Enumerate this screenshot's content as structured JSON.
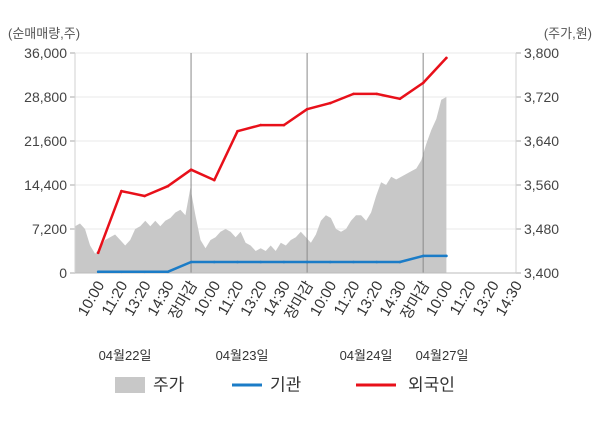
{
  "chart_data": {
    "type": "line",
    "ylabel_left": "(순매매량,주)",
    "ylabel_right": "(주가,원)",
    "ylim_left": [
      0,
      36000
    ],
    "ylim_right": [
      3400,
      3800
    ],
    "yticks_left": [
      {
        "value": 0,
        "label": "0"
      },
      {
        "value": 7200,
        "label": "7,200"
      },
      {
        "value": 14400,
        "label": "14,400"
      },
      {
        "value": 21600,
        "label": "21,600"
      },
      {
        "value": 28800,
        "label": "28,800"
      },
      {
        "value": 36000,
        "label": "36,000"
      }
    ],
    "yticks_right": [
      {
        "value": 3400,
        "label": "3,400"
      },
      {
        "value": 3480,
        "label": "3,480"
      },
      {
        "value": 3560,
        "label": "3,560"
      },
      {
        "value": 3640,
        "label": "3,640"
      },
      {
        "value": 3720,
        "label": "3,720"
      },
      {
        "value": 3800,
        "label": "3,800"
      }
    ],
    "days": [
      {
        "date": "04월22일",
        "times": [
          {
            "label": "10:00"
          },
          {
            "label": "11:20"
          },
          {
            "label": "13:20"
          },
          {
            "label": "14:30"
          },
          {
            "label": "장마감",
            "color": "#e60012"
          }
        ]
      },
      {
        "date": "04월23일",
        "times": [
          {
            "label": "10:00"
          },
          {
            "label": "11:20"
          },
          {
            "label": "13:20"
          },
          {
            "label": "14:30"
          },
          {
            "label": "장마감",
            "color": "#e60012"
          }
        ]
      },
      {
        "date": "04월24일",
        "times": [
          {
            "label": "10:00"
          },
          {
            "label": "11:20"
          },
          {
            "label": "13:20"
          },
          {
            "label": "14:30"
          },
          {
            "label": "장마감",
            "color": "#e60012"
          }
        ]
      },
      {
        "date": "04월27일",
        "times": [
          {
            "label": "10:00"
          },
          {
            "label": "11:20"
          },
          {
            "label": "13:20"
          },
          {
            "label": "14:30"
          }
        ]
      }
    ],
    "grid": true,
    "legend_position": "bottom",
    "series": [
      {
        "name": "주가",
        "type": "area",
        "axis": "right",
        "color": "#c8c8c8",
        "values": [
          3485,
          3490,
          3480,
          3450,
          3435,
          3445,
          3460,
          3465,
          3470,
          3460,
          3450,
          3460,
          3480,
          3485,
          3495,
          3485,
          3495,
          3485,
          3495,
          3500,
          3510,
          3515,
          3505,
          3555,
          3505,
          3460,
          3445,
          3460,
          3465,
          3475,
          3480,
          3475,
          3465,
          3475,
          3455,
          3450,
          3440,
          3445,
          3440,
          3450,
          3440,
          3455,
          3450,
          3460,
          3465,
          3475,
          3465,
          3455,
          3470,
          3495,
          3505,
          3500,
          3480,
          3475,
          3480,
          3495,
          3505,
          3505,
          3495,
          3510,
          3540,
          3565,
          3560,
          3575,
          3570,
          3575,
          3580,
          3585,
          3590,
          3605,
          3635,
          3660,
          3680,
          3715,
          3720
        ]
      },
      {
        "name": "기관",
        "type": "line",
        "axis": "left",
        "color": "#1b7cc7",
        "values": [
          200,
          200,
          200,
          200,
          1800,
          1800,
          1800,
          1800,
          1800,
          1800,
          1800,
          1800,
          1800,
          1800,
          2800,
          2800
        ]
      },
      {
        "name": "외국인",
        "type": "line",
        "axis": "left",
        "color": "#e8101a",
        "values": [
          3300,
          13400,
          12600,
          14200,
          16900,
          15200,
          23200,
          24200,
          24200,
          26800,
          27800,
          29300,
          29300,
          28500,
          31100,
          35200
        ]
      }
    ]
  }
}
